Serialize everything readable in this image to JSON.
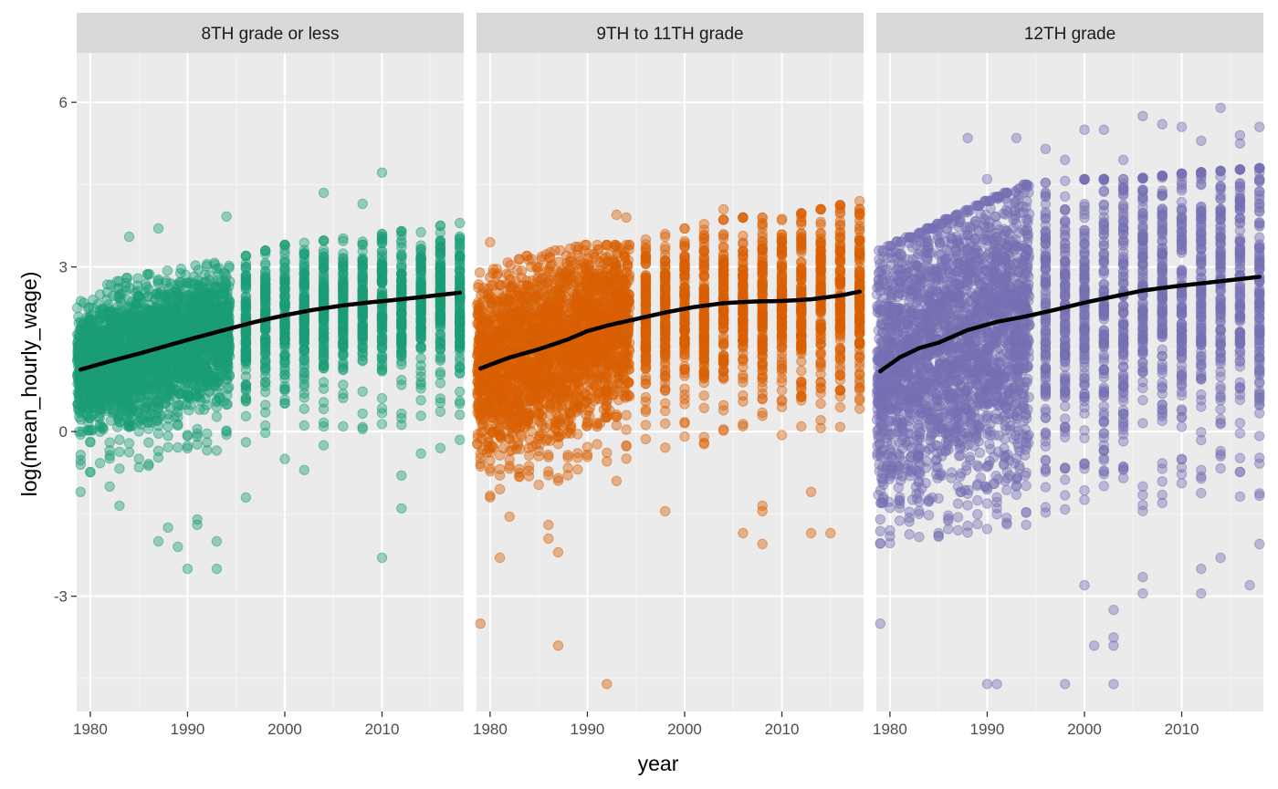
{
  "chart_data": {
    "type": "scatter",
    "xlabel": "year",
    "ylabel": "log(mean_hourly_wage)",
    "xlim": [
      1978.6,
      2018.4
    ],
    "ylim": [
      -5.1,
      6.9
    ],
    "x_ticks": [
      1980,
      1990,
      2000,
      2010
    ],
    "y_ticks": [
      -3,
      0,
      3,
      6
    ],
    "y_tick_labels": [
      "-3",
      "0",
      "3",
      "6"
    ],
    "x_tick_labels": [
      "1980",
      "1990",
      "2000",
      "2010"
    ],
    "grid": true,
    "legend": "none",
    "trend": "smoothed line per panel (black)",
    "facets": [
      {
        "label": "8TH grade or less",
        "color": "#1B9E77",
        "smooth": [
          [
            1979,
            1.13
          ],
          [
            1982,
            1.28
          ],
          [
            1985,
            1.42
          ],
          [
            1988,
            1.57
          ],
          [
            1991,
            1.72
          ],
          [
            1994,
            1.86
          ],
          [
            1997,
            2.0
          ],
          [
            2000,
            2.12
          ],
          [
            2003,
            2.22
          ],
          [
            2006,
            2.3
          ],
          [
            2009,
            2.36
          ],
          [
            2012,
            2.41
          ],
          [
            2015,
            2.47
          ],
          [
            2018,
            2.53
          ]
        ],
        "band": [
          [
            1979,
            0.4,
            2.2
          ],
          [
            1984,
            0.5,
            2.5
          ],
          [
            1990,
            0.7,
            2.7
          ],
          [
            1994,
            0.9,
            2.8
          ],
          [
            2000,
            1.1,
            3.1
          ],
          [
            2005,
            1.2,
            3.2
          ],
          [
            2010,
            1.2,
            3.3
          ],
          [
            2018,
            1.4,
            3.5
          ]
        ],
        "outliers": [
          [
            2010,
            4.72
          ],
          [
            2004,
            4.35
          ],
          [
            2008,
            4.15
          ],
          [
            1994,
            3.92
          ],
          [
            1987,
            3.7
          ],
          [
            1984,
            3.55
          ],
          [
            1991,
            -1.6
          ],
          [
            1991,
            -1.7
          ],
          [
            1987,
            -2.0
          ],
          [
            1989,
            -2.1
          ],
          [
            1990,
            -2.5
          ],
          [
            1993,
            -2.5
          ],
          [
            2010,
            -2.3
          ],
          [
            1996,
            -1.2
          ],
          [
            2012,
            -1.4
          ],
          [
            1982,
            -1.0
          ],
          [
            1988,
            -1.75
          ],
          [
            1993,
            -2.0
          ],
          [
            2016,
            -0.3
          ],
          [
            2018,
            -0.15
          ],
          [
            2004,
            -0.25
          ],
          [
            2000,
            -0.5
          ],
          [
            2002,
            -0.7
          ],
          [
            2012,
            -0.8
          ],
          [
            2014,
            -0.4
          ],
          [
            1979,
            -1.1
          ],
          [
            1983,
            -1.35
          ]
        ]
      },
      {
        "label": "9TH to 11TH grade",
        "color": "#D95F02",
        "smooth": [
          [
            1979,
            1.15
          ],
          [
            1982,
            1.35
          ],
          [
            1985,
            1.5
          ],
          [
            1988,
            1.68
          ],
          [
            1990,
            1.83
          ],
          [
            1992,
            1.93
          ],
          [
            1995,
            2.05
          ],
          [
            1998,
            2.17
          ],
          [
            2001,
            2.27
          ],
          [
            2004,
            2.34
          ],
          [
            2007,
            2.37
          ],
          [
            2010,
            2.38
          ],
          [
            2013,
            2.41
          ],
          [
            2016,
            2.48
          ],
          [
            2018,
            2.55
          ]
        ],
        "band": [
          [
            1979,
            0.0,
            2.6
          ],
          [
            1984,
            0.1,
            2.9
          ],
          [
            1990,
            0.5,
            3.1
          ],
          [
            1994,
            0.7,
            3.1
          ],
          [
            2000,
            0.9,
            3.4
          ],
          [
            2005,
            1.0,
            3.6
          ],
          [
            2010,
            1.0,
            3.6
          ],
          [
            2018,
            1.2,
            3.9
          ]
        ],
        "outliers": [
          [
            1979,
            -3.5
          ],
          [
            1987,
            -3.9
          ],
          [
            1992,
            -4.6
          ],
          [
            1986,
            -1.95
          ],
          [
            1987,
            -2.2
          ],
          [
            1986,
            -1.7
          ],
          [
            1981,
            -2.3
          ],
          [
            1982,
            -1.55
          ],
          [
            1980,
            -1.2
          ],
          [
            1998,
            -1.45
          ],
          [
            2006,
            -1.85
          ],
          [
            2008,
            -2.05
          ],
          [
            2008,
            -1.35
          ],
          [
            2008,
            -1.45
          ],
          [
            2013,
            -1.85
          ],
          [
            2015,
            -1.85
          ],
          [
            2013,
            -1.1
          ],
          [
            1993,
            -0.9
          ],
          [
            1980,
            3.45
          ],
          [
            1993,
            3.95
          ],
          [
            1994,
            3.9
          ],
          [
            2004,
            4.05
          ],
          [
            2014,
            4.05
          ],
          [
            2016,
            4.0
          ],
          [
            2018,
            4.05
          ],
          [
            2010,
            3.85
          ]
        ]
      },
      {
        "label": "12TH grade",
        "color": "#7570B3",
        "smooth": [
          [
            1979,
            1.1
          ],
          [
            1981,
            1.35
          ],
          [
            1983,
            1.52
          ],
          [
            1985,
            1.62
          ],
          [
            1988,
            1.85
          ],
          [
            1991,
            2.0
          ],
          [
            1994,
            2.1
          ],
          [
            1997,
            2.22
          ],
          [
            2000,
            2.35
          ],
          [
            2003,
            2.46
          ],
          [
            2006,
            2.57
          ],
          [
            2009,
            2.64
          ],
          [
            2012,
            2.7
          ],
          [
            2015,
            2.76
          ],
          [
            2018,
            2.82
          ]
        ],
        "band": [
          [
            1979,
            -0.9,
            3.0
          ],
          [
            1984,
            -0.8,
            3.4
          ],
          [
            1990,
            -0.6,
            3.9
          ],
          [
            1994,
            -0.4,
            4.2
          ],
          [
            2000,
            -0.2,
            4.3
          ],
          [
            2005,
            -0.3,
            4.3
          ],
          [
            2010,
            -0.1,
            4.4
          ],
          [
            2018,
            0.0,
            4.5
          ]
        ],
        "outliers": [
          [
            1979,
            -3.5
          ],
          [
            1990,
            -4.6
          ],
          [
            1991,
            -4.6
          ],
          [
            1998,
            -4.6
          ],
          [
            2003,
            -4.6
          ],
          [
            2003,
            -3.9
          ],
          [
            2003,
            -3.75
          ],
          [
            2001,
            -3.9
          ],
          [
            2006,
            -2.95
          ],
          [
            2006,
            -2.65
          ],
          [
            2003,
            -3.25
          ],
          [
            2012,
            -2.95
          ],
          [
            2017,
            -2.8
          ],
          [
            2012,
            -2.5
          ],
          [
            2014,
            -2.3
          ],
          [
            2018,
            -2.05
          ],
          [
            2000,
            -2.8
          ],
          [
            1994,
            -1.7
          ],
          [
            1988,
            5.35
          ],
          [
            1993,
            5.35
          ],
          [
            1998,
            4.95
          ],
          [
            2000,
            5.5
          ],
          [
            2002,
            5.5
          ],
          [
            2004,
            4.95
          ],
          [
            2006,
            5.75
          ],
          [
            2008,
            5.6
          ],
          [
            2010,
            5.55
          ],
          [
            2012,
            5.3
          ],
          [
            2014,
            5.9
          ],
          [
            2016,
            5.4
          ],
          [
            2018,
            5.55
          ],
          [
            1996,
            5.15
          ],
          [
            2016,
            5.25
          ],
          [
            1990,
            4.6
          ]
        ]
      }
    ]
  }
}
